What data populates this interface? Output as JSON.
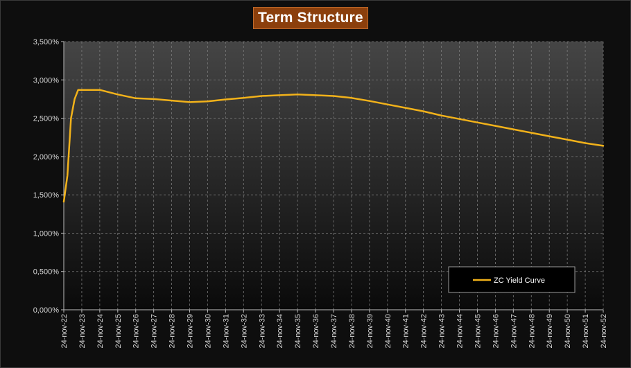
{
  "chart_data": {
    "type": "line",
    "title": "Term Structure",
    "xlabel": "",
    "ylabel": "",
    "x_tick_labels": [
      "24-nov-22",
      "24-nov-23",
      "24-nov-24",
      "24-nov-25",
      "24-nov-26",
      "24-nov-27",
      "24-nov-28",
      "24-nov-29",
      "24-nov-30",
      "24-nov-31",
      "24-nov-32",
      "24-nov-33",
      "24-nov-34",
      "24-nov-35",
      "24-nov-36",
      "24-nov-37",
      "24-nov-38",
      "24-nov-39",
      "24-nov-40",
      "24-nov-41",
      "24-nov-42",
      "24-nov-43",
      "24-nov-44",
      "24-nov-45",
      "24-nov-46",
      "24-nov-47",
      "24-nov-48",
      "24-nov-49",
      "24-nov-50",
      "24-nov-51",
      "24-nov-52"
    ],
    "y_tick_labels": [
      "0,000%",
      "0,500%",
      "1,000%",
      "1,500%",
      "2,000%",
      "2,500%",
      "3,000%",
      "3,500%"
    ],
    "y_ticks": [
      0,
      0.5,
      1.0,
      1.5,
      2.0,
      2.5,
      3.0,
      3.5
    ],
    "ylim": [
      0,
      3.5
    ],
    "xlim": [
      2022.9,
      2052.9
    ],
    "grid": true,
    "legend_position": "bottom-right",
    "series": [
      {
        "name": "ZC Yield Curve",
        "color": "#f2b21a",
        "x": [
          2022.9,
          2023.1,
          2023.3,
          2023.5,
          2023.7,
          2023.9,
          2024.9,
          2025.9,
          2026.9,
          2027.9,
          2028.9,
          2029.9,
          2030.9,
          2031.9,
          2032.9,
          2033.9,
          2034.9,
          2035.9,
          2036.9,
          2037.9,
          2038.9,
          2039.9,
          2040.9,
          2041.9,
          2042.9,
          2043.9,
          2044.9,
          2045.9,
          2046.9,
          2047.9,
          2048.9,
          2049.9,
          2050.9,
          2051.9,
          2052.9
        ],
        "y": [
          1.41,
          1.75,
          2.5,
          2.75,
          2.87,
          2.87,
          2.87,
          2.81,
          2.76,
          2.75,
          2.73,
          2.71,
          2.72,
          2.745,
          2.765,
          2.79,
          2.8,
          2.81,
          2.8,
          2.79,
          2.765,
          2.725,
          2.68,
          2.635,
          2.59,
          2.535,
          2.49,
          2.445,
          2.4,
          2.355,
          2.31,
          2.265,
          2.22,
          2.175,
          2.14
        ]
      }
    ]
  }
}
